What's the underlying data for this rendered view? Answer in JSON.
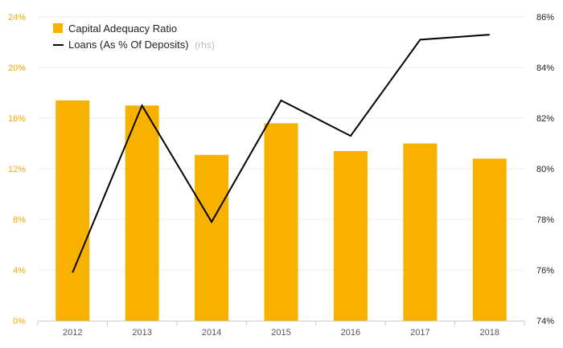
{
  "chart_data": {
    "type": "bar",
    "categories": [
      "2012",
      "2013",
      "2014",
      "2015",
      "2016",
      "2017",
      "2018"
    ],
    "series": [
      {
        "name": "Capital Adequacy Ratio",
        "type": "bar",
        "axis": "left",
        "color": "#f9b100",
        "values": [
          17.4,
          17.0,
          13.1,
          15.6,
          13.4,
          14.0,
          12.8
        ]
      },
      {
        "name": "Loans (As % Of Deposits)",
        "name_suffix": "(rhs)",
        "type": "line",
        "axis": "right",
        "color": "#000000",
        "values": [
          75.9,
          82.5,
          77.9,
          82.7,
          81.3,
          85.1,
          85.3
        ]
      }
    ],
    "y_left": {
      "min": 0,
      "max": 24,
      "ticks": [
        "0%",
        "4%",
        "8%",
        "12%",
        "16%",
        "20%",
        "24%"
      ],
      "tick_values": [
        0,
        4,
        8,
        12,
        16,
        20,
        24
      ],
      "color": "#f2a900"
    },
    "y_right": {
      "min": 74,
      "max": 86,
      "ticks": [
        "74%",
        "76%",
        "78%",
        "80%",
        "82%",
        "84%",
        "86%"
      ],
      "tick_values": [
        74,
        76,
        78,
        80,
        82,
        84,
        86
      ],
      "color": "#222222"
    },
    "title": "",
    "xlabel": "",
    "ylabel": "",
    "grid": true,
    "legend_position": "top-left"
  }
}
